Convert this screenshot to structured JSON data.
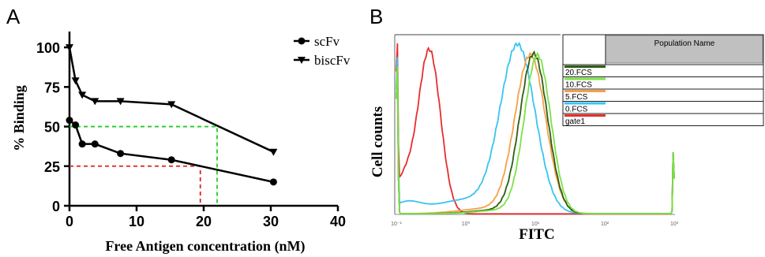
{
  "chart_data": [
    {
      "panel_label": "A",
      "type": "line",
      "xlabel": "Free Antigen concentration (nM)",
      "ylabel": "% Binding",
      "xlim": [
        0,
        40
      ],
      "ylim": [
        0,
        110
      ],
      "x_ticks": [
        0,
        10,
        20,
        30,
        40
      ],
      "y_ticks": [
        0,
        25,
        50,
        75,
        100
      ],
      "x_tick_labels": [
        "0",
        "10",
        "20",
        "30",
        "40"
      ],
      "y_tick_labels": [
        "0",
        "25",
        "50",
        "75",
        "100"
      ],
      "legend_position": "top-right",
      "series": [
        {
          "name": "scFv",
          "marker": "circle",
          "x": [
            0,
            0.9,
            1.9,
            3.8,
            7.6,
            15.2,
            30.4
          ],
          "y": [
            54,
            51,
            39,
            39,
            33,
            29,
            15
          ]
        },
        {
          "name": "biscFv",
          "marker": "triangle-down",
          "x": [
            0,
            0.9,
            1.9,
            3.8,
            7.6,
            15.2,
            30.4
          ],
          "y": [
            100,
            79,
            70,
            66,
            66,
            64,
            34
          ]
        }
      ],
      "reference_lines": [
        {
          "color": "#22cc22",
          "y": 50,
          "x": 22
        },
        {
          "color": "#dd2222",
          "y": 25,
          "x": 19.5
        }
      ]
    },
    {
      "panel_label": "B",
      "type": "line",
      "xlabel": "FITC",
      "ylabel": "Cell counts",
      "x_scale": "log",
      "xlim": [
        0.1,
        1000
      ],
      "x_ticks": [
        0.1,
        1,
        10,
        100,
        1000
      ],
      "x_tick_labels": [
        "10⁻¹",
        "10⁰",
        "10¹",
        "10²",
        "10³"
      ],
      "legend": {
        "header": "Population Name",
        "position": "top-right",
        "entries": [
          {
            "name": "20.FCS",
            "color": "#2f5d12"
          },
          {
            "name": "10.FCS",
            "color": "#7be246"
          },
          {
            "name": "5.FCS",
            "color": "#f5a04a"
          },
          {
            "name": "0.FCS",
            "color": "#38c4f0"
          },
          {
            "name": "gate1",
            "color": "#e62e2e"
          }
        ]
      },
      "series": [
        {
          "name": "gate1",
          "color": "#e62e2e",
          "peak_x": 0.3
        },
        {
          "name": "0.FCS",
          "color": "#38c4f0",
          "peak_x": 5.6
        },
        {
          "name": "5.FCS",
          "color": "#f5a04a",
          "peak_x": 8.5
        },
        {
          "name": "20.FCS",
          "color": "#2f5d12",
          "peak_x": 9.5
        },
        {
          "name": "10.FCS",
          "color": "#7be246",
          "peak_x": 10.8
        }
      ]
    }
  ]
}
